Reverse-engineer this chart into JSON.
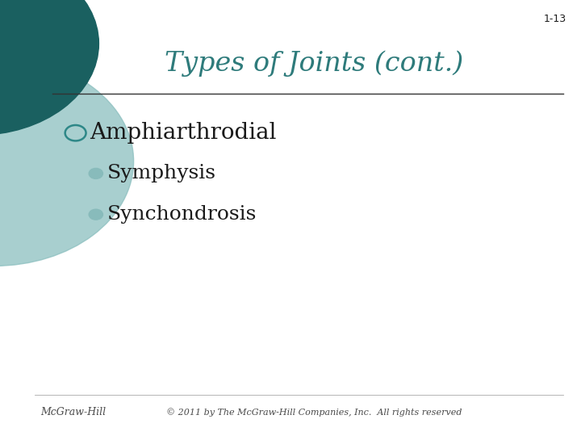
{
  "title": "Types of Joints (cont.)",
  "title_color": "#2E7B7B",
  "slide_number": "1-13",
  "background_color": "#FFFFFF",
  "bullet1": "Amphiarthrodial",
  "sub_bullet1": "Symphysis",
  "sub_bullet2": "Synchondrosis",
  "text_color": "#1a1a1a",
  "footer_left": "McGraw-Hill",
  "footer_center": "© 2011 by The McGraw-Hill Companies, Inc.  All rights reserved",
  "footer_color": "#4a4a4a",
  "line_color": "#333333",
  "circle_dark_color": "#1A6060",
  "circle_light_color": "#8BBFBF",
  "bullet_open_color": "#2E8888",
  "sub_bullet_circle_color": "#88BBBB"
}
